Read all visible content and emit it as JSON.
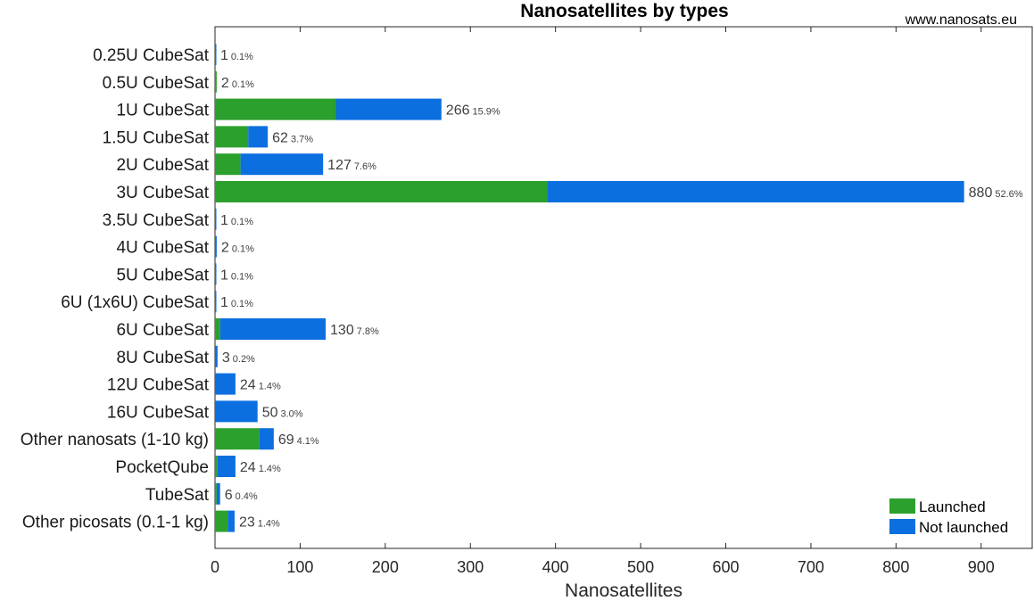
{
  "chart_data": {
    "type": "bar",
    "orientation": "horizontal",
    "stacked": true,
    "title": "Nanosatellites by types",
    "source": "www.nanosats.eu",
    "xlabel": "Nanosatellites",
    "xlim": [
      0,
      960
    ],
    "xticks": [
      0,
      100,
      200,
      300,
      400,
      500,
      600,
      700,
      800,
      900
    ],
    "grid": false,
    "legend_position": "bottom-right",
    "categories": [
      "0.25U CubeSat",
      "0.5U CubeSat",
      "1U CubeSat",
      "1.5U CubeSat",
      "2U CubeSat",
      "3U CubeSat",
      "3.5U CubeSat",
      "4U CubeSat",
      "5U CubeSat",
      "6U (1x6U) CubeSat",
      "6U CubeSat",
      "8U CubeSat",
      "12U CubeSat",
      "16U CubeSat",
      "Other nanosats (1-10 kg)",
      "PocketQube",
      "TubeSat",
      "Other picosats (0.1-1 kg)"
    ],
    "series": [
      {
        "name": "Launched",
        "color": "#2ca02c",
        "values": [
          0,
          2,
          142,
          39,
          30,
          390,
          0,
          0,
          0,
          0,
          6,
          0,
          0,
          0,
          52,
          3,
          2,
          15
        ]
      },
      {
        "name": "Not launched",
        "color": "#0b6fe0",
        "values": [
          1,
          0,
          124,
          23,
          97,
          490,
          1,
          2,
          1,
          1,
          124,
          3,
          24,
          50,
          17,
          21,
          4,
          8
        ]
      }
    ],
    "totals": [
      "1",
      "2",
      "266",
      "62",
      "127",
      "880",
      "1",
      "2",
      "1",
      "1",
      "130",
      "3",
      "24",
      "50",
      "69",
      "24",
      "6",
      "23"
    ],
    "percentages": [
      "0.1%",
      "0.1%",
      "15.9%",
      "3.7%",
      "7.6%",
      "52.6%",
      "0.1%",
      "0.1%",
      "0.1%",
      "0.1%",
      "7.8%",
      "0.2%",
      "1.4%",
      "3.0%",
      "4.1%",
      "1.4%",
      "0.4%",
      "1.4%"
    ]
  }
}
